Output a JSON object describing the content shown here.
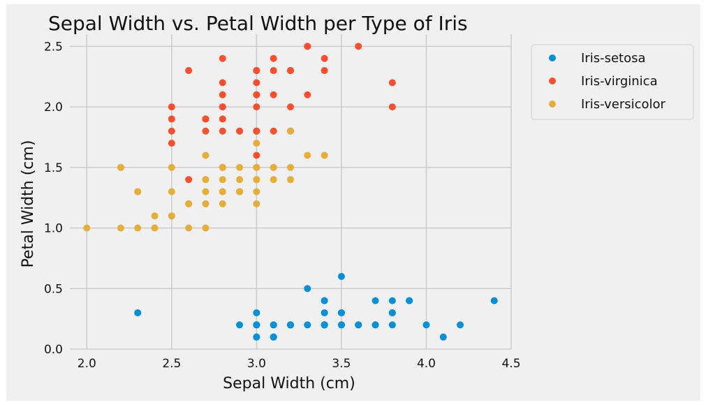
{
  "chart_data": {
    "type": "scatter",
    "title": "Sepal Width vs. Petal Width per Type of Iris",
    "xlabel": "Sepal Width (cm)",
    "ylabel": "Petal Width (cm)",
    "xlim": [
      1.9,
      4.5
    ],
    "ylim": [
      0.0,
      2.6
    ],
    "xticks": [
      2.0,
      2.5,
      3.0,
      3.5,
      4.0,
      4.5
    ],
    "xtick_labels": [
      "2.0",
      "2.5",
      "3.0",
      "3.5",
      "4.0",
      "4.5"
    ],
    "yticks": [
      0.0,
      0.5,
      1.0,
      1.5,
      2.0,
      2.5
    ],
    "ytick_labels": [
      "0.0",
      "0.5",
      "1.0",
      "1.5",
      "2.0",
      "2.5"
    ],
    "grid": true,
    "legend_position": "outside-top-right",
    "series": [
      {
        "name": "Iris-setosa",
        "color": "#008fd5",
        "points": [
          [
            3.5,
            0.2
          ],
          [
            3.0,
            0.2
          ],
          [
            3.2,
            0.2
          ],
          [
            3.1,
            0.2
          ],
          [
            3.6,
            0.2
          ],
          [
            3.9,
            0.4
          ],
          [
            3.4,
            0.3
          ],
          [
            3.4,
            0.2
          ],
          [
            2.9,
            0.2
          ],
          [
            3.1,
            0.1
          ],
          [
            3.7,
            0.2
          ],
          [
            3.4,
            0.2
          ],
          [
            3.0,
            0.1
          ],
          [
            3.0,
            0.1
          ],
          [
            4.0,
            0.2
          ],
          [
            4.4,
            0.4
          ],
          [
            3.9,
            0.4
          ],
          [
            3.5,
            0.3
          ],
          [
            3.8,
            0.3
          ],
          [
            3.8,
            0.3
          ],
          [
            3.4,
            0.2
          ],
          [
            3.7,
            0.4
          ],
          [
            3.6,
            0.2
          ],
          [
            3.3,
            0.5
          ],
          [
            3.4,
            0.2
          ],
          [
            3.0,
            0.2
          ],
          [
            3.4,
            0.4
          ],
          [
            3.5,
            0.2
          ],
          [
            3.4,
            0.2
          ],
          [
            3.2,
            0.2
          ],
          [
            3.1,
            0.2
          ],
          [
            3.4,
            0.4
          ],
          [
            4.1,
            0.1
          ],
          [
            4.2,
            0.2
          ],
          [
            3.1,
            0.1
          ],
          [
            3.2,
            0.2
          ],
          [
            3.5,
            0.2
          ],
          [
            3.1,
            0.1
          ],
          [
            3.0,
            0.2
          ],
          [
            3.4,
            0.2
          ],
          [
            3.5,
            0.3
          ],
          [
            2.3,
            0.3
          ],
          [
            3.2,
            0.2
          ],
          [
            3.5,
            0.6
          ],
          [
            3.8,
            0.4
          ],
          [
            3.0,
            0.3
          ],
          [
            3.8,
            0.2
          ],
          [
            3.2,
            0.2
          ],
          [
            3.7,
            0.2
          ],
          [
            3.3,
            0.2
          ]
        ]
      },
      {
        "name": "Iris-virginica",
        "color": "#fc4f30",
        "points": [
          [
            3.3,
            2.5
          ],
          [
            2.7,
            1.9
          ],
          [
            3.0,
            2.1
          ],
          [
            2.9,
            1.8
          ],
          [
            3.0,
            2.2
          ],
          [
            3.0,
            2.1
          ],
          [
            2.5,
            1.7
          ],
          [
            2.9,
            1.8
          ],
          [
            2.5,
            1.8
          ],
          [
            3.6,
            2.5
          ],
          [
            3.2,
            2.0
          ],
          [
            2.7,
            1.9
          ],
          [
            3.0,
            2.1
          ],
          [
            2.5,
            2.0
          ],
          [
            2.8,
            2.4
          ],
          [
            3.2,
            2.3
          ],
          [
            3.0,
            1.8
          ],
          [
            3.8,
            2.2
          ],
          [
            2.6,
            2.3
          ],
          [
            2.2,
            1.5
          ],
          [
            3.2,
            2.3
          ],
          [
            2.8,
            2.0
          ],
          [
            2.8,
            2.0
          ],
          [
            2.7,
            1.8
          ],
          [
            3.3,
            2.1
          ],
          [
            3.2,
            1.8
          ],
          [
            2.8,
            1.8
          ],
          [
            3.0,
            1.8
          ],
          [
            2.8,
            2.1
          ],
          [
            3.0,
            1.6
          ],
          [
            2.8,
            1.9
          ],
          [
            3.8,
            2.0
          ],
          [
            2.8,
            2.2
          ],
          [
            2.8,
            1.5
          ],
          [
            2.6,
            1.4
          ],
          [
            3.0,
            2.3
          ],
          [
            3.4,
            2.4
          ],
          [
            3.1,
            1.8
          ],
          [
            3.0,
            1.8
          ],
          [
            3.1,
            2.1
          ],
          [
            3.1,
            2.4
          ],
          [
            3.1,
            2.3
          ],
          [
            2.7,
            1.9
          ],
          [
            3.2,
            2.3
          ],
          [
            3.3,
            2.5
          ],
          [
            3.0,
            2.3
          ],
          [
            2.5,
            1.9
          ],
          [
            3.0,
            2.0
          ],
          [
            3.4,
            2.3
          ],
          [
            3.0,
            1.8
          ]
        ]
      },
      {
        "name": "Iris-versicolor",
        "color": "#e5ae38",
        "points": [
          [
            3.2,
            1.4
          ],
          [
            3.2,
            1.5
          ],
          [
            3.1,
            1.5
          ],
          [
            2.3,
            1.3
          ],
          [
            2.8,
            1.5
          ],
          [
            2.8,
            1.3
          ],
          [
            3.3,
            1.6
          ],
          [
            2.4,
            1.0
          ],
          [
            2.9,
            1.3
          ],
          [
            2.7,
            1.4
          ],
          [
            2.0,
            1.0
          ],
          [
            3.0,
            1.5
          ],
          [
            2.2,
            1.0
          ],
          [
            2.9,
            1.4
          ],
          [
            2.9,
            1.3
          ],
          [
            3.1,
            1.4
          ],
          [
            3.0,
            1.5
          ],
          [
            2.7,
            1.0
          ],
          [
            2.2,
            1.5
          ],
          [
            2.5,
            1.1
          ],
          [
            3.2,
            1.8
          ],
          [
            2.8,
            1.3
          ],
          [
            2.5,
            1.5
          ],
          [
            2.8,
            1.2
          ],
          [
            2.9,
            1.3
          ],
          [
            3.0,
            1.4
          ],
          [
            2.8,
            1.4
          ],
          [
            3.0,
            1.7
          ],
          [
            2.9,
            1.5
          ],
          [
            2.6,
            1.0
          ],
          [
            2.4,
            1.1
          ],
          [
            2.4,
            1.0
          ],
          [
            2.7,
            1.2
          ],
          [
            2.7,
            1.6
          ],
          [
            3.0,
            1.5
          ],
          [
            3.4,
            1.6
          ],
          [
            3.1,
            1.5
          ],
          [
            2.3,
            1.3
          ],
          [
            3.0,
            1.3
          ],
          [
            2.5,
            1.3
          ],
          [
            2.6,
            1.2
          ],
          [
            3.0,
            1.4
          ],
          [
            2.6,
            1.2
          ],
          [
            2.3,
            1.0
          ],
          [
            2.7,
            1.3
          ],
          [
            3.0,
            1.2
          ],
          [
            2.9,
            1.3
          ],
          [
            2.9,
            1.3
          ],
          [
            2.5,
            1.1
          ],
          [
            2.8,
            1.3
          ]
        ]
      }
    ]
  }
}
